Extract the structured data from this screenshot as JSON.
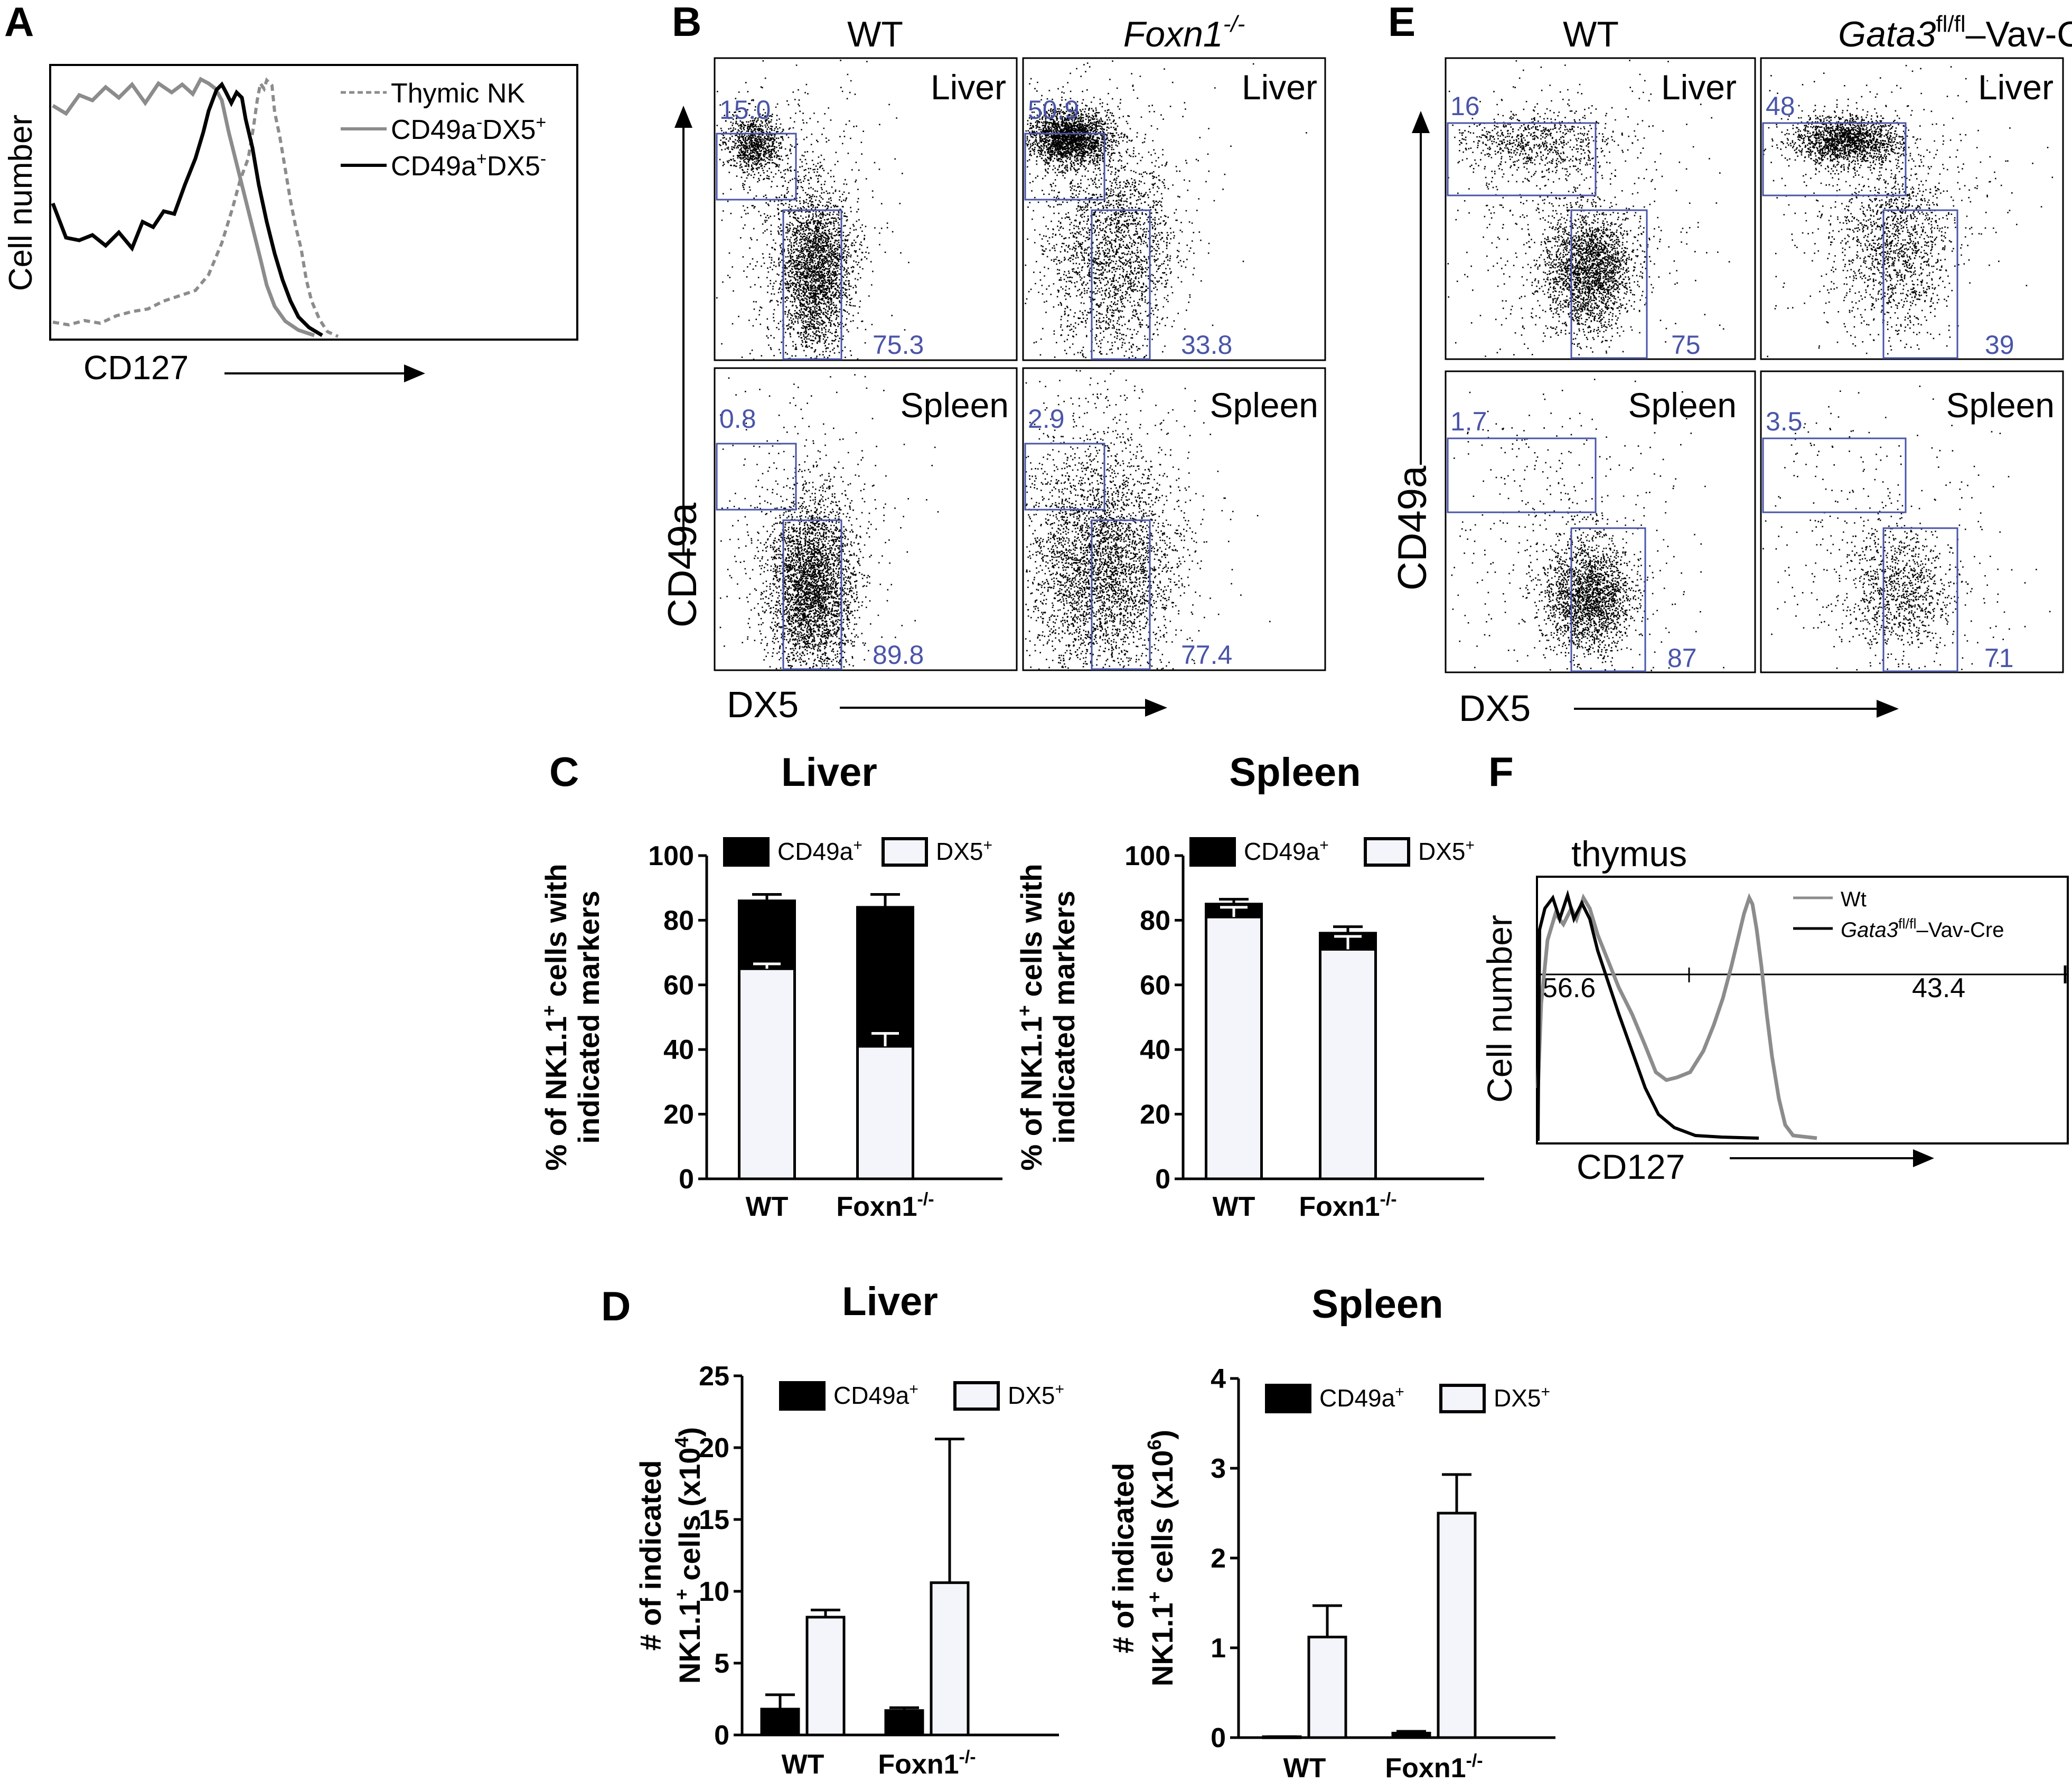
{
  "panel_labels": {
    "a": "A",
    "b": "B",
    "c": "C",
    "d": "D",
    "e": "E",
    "f": "F"
  },
  "colors": {
    "gate": "#4a55a8",
    "black": "#000000",
    "gray": "#8c8c8c",
    "bar_white": "#f4f5fb"
  },
  "panelA": {
    "ylabel": "Cell number",
    "xlabel": "CD127",
    "legend": [
      {
        "base": "Thymic NK",
        "sup1": "",
        "mid": "",
        "sup2": "",
        "style": "dotted"
      },
      {
        "base": "CD49a",
        "sup1": "-",
        "mid": "DX5",
        "sup2": "+",
        "style": "gray"
      },
      {
        "base": "CD49a",
        "sup1": "+",
        "mid": "DX5",
        "sup2": "-",
        "style": "black"
      }
    ]
  },
  "panelB": {
    "col_titles": [
      "WT",
      "Foxn1"
    ],
    "col_title_sup": "-/-",
    "ylabel": "CD49a",
    "xlabel": "DX5",
    "plots": [
      {
        "tissue": "Liver",
        "upper": "15.0",
        "lower": "75.3"
      },
      {
        "tissue": "Liver",
        "upper": "50.9",
        "lower": "33.8"
      },
      {
        "tissue": "Spleen",
        "upper": "0.8",
        "lower": "89.8"
      },
      {
        "tissue": "Spleen",
        "upper": "2.9",
        "lower": "77.4"
      }
    ]
  },
  "panelE": {
    "col_titles": [
      "WT",
      "Gata3",
      "–Vav-Cre"
    ],
    "col_title_sup": "fl/fl",
    "ylabel": "CD49a",
    "xlabel": "DX5",
    "plots": [
      {
        "tissue": "Liver",
        "upper": "16",
        "lower": "75"
      },
      {
        "tissue": "Liver",
        "upper": "48",
        "lower": "39"
      },
      {
        "tissue": "Spleen",
        "upper": "1.7",
        "lower": "87"
      },
      {
        "tissue": "Spleen",
        "upper": "3.5",
        "lower": "71"
      }
    ]
  },
  "panelF": {
    "title": "thymus",
    "ylabel": "Cell number",
    "xlabel": "CD127",
    "gate_left": "56.6",
    "gate_right": "43.4",
    "legend": [
      "Wt",
      "Gata3",
      "–Vav-Cre"
    ],
    "legend_sup": "fl/fl"
  },
  "chart_data": [
    {
      "id": "C-liver",
      "type": "bar",
      "stacked": true,
      "title": "Liver",
      "ylabel_line1": "% of NK1.1",
      "ylabel_sup": "+",
      "ylabel_line1b": " cells with",
      "ylabel_line2": "indicated markers",
      "categories": [
        "WT",
        "Foxn1"
      ],
      "category_sup": [
        "",
        "-/-"
      ],
      "ylim": [
        0,
        100
      ],
      "yticks": [
        "0",
        "20",
        "40",
        "60",
        "80",
        "100"
      ],
      "legend": [
        {
          "base": "CD49a",
          "sup": "+"
        },
        {
          "base": "DX5",
          "sup": "+"
        }
      ],
      "series": [
        {
          "name": "DX5+",
          "values": [
            65,
            41
          ],
          "errors": [
            1.5,
            4
          ]
        },
        {
          "name": "CD49a+",
          "values": [
            21,
            43
          ],
          "errors": [
            2,
            4
          ]
        }
      ]
    },
    {
      "id": "C-spleen",
      "type": "bar",
      "stacked": true,
      "title": "Spleen",
      "ylabel_line1": "% of NK1.1",
      "ylabel_sup": "+",
      "ylabel_line1b": " cells with",
      "ylabel_line2": "indicated markers",
      "categories": [
        "WT",
        "Foxn1"
      ],
      "category_sup": [
        "",
        "-/-"
      ],
      "ylim": [
        0,
        100
      ],
      "yticks": [
        "0",
        "20",
        "40",
        "60",
        "80",
        "100"
      ],
      "legend": [
        {
          "base": "CD49a",
          "sup": "+"
        },
        {
          "base": "DX5",
          "sup": "+"
        }
      ],
      "series": [
        {
          "name": "DX5+",
          "values": [
            81,
            71
          ],
          "errors": [
            3,
            4
          ]
        },
        {
          "name": "CD49a+",
          "values": [
            4,
            5
          ],
          "errors": [
            1.5,
            2
          ]
        }
      ]
    },
    {
      "id": "D-liver",
      "type": "bar",
      "stacked": false,
      "title": "Liver",
      "ylabel_line1": "# of indicated",
      "ylabel_line2a": "NK1.1",
      "ylabel_sup": "+",
      "ylabel_line2b": " cells (x10",
      "ylabel_exp": "4",
      "ylabel_close": ")",
      "categories": [
        "WT",
        "Foxn1"
      ],
      "category_sup": [
        "",
        "-/-"
      ],
      "ylim": [
        0,
        25
      ],
      "yticks": [
        "0",
        "5",
        "10",
        "15",
        "20",
        "25"
      ],
      "legend": [
        {
          "base": "CD49a",
          "sup": "+"
        },
        {
          "base": "DX5",
          "sup": "+"
        }
      ],
      "series": [
        {
          "name": "CD49a+",
          "values": [
            1.8,
            1.7
          ],
          "errors": [
            1.0,
            0.2
          ]
        },
        {
          "name": "DX5+",
          "values": [
            8.2,
            10.6
          ],
          "errors": [
            0.5,
            10.0
          ]
        }
      ]
    },
    {
      "id": "D-spleen",
      "type": "bar",
      "stacked": false,
      "title": "Spleen",
      "ylabel_line1": "# of indicated",
      "ylabel_line2a": "NK1.1",
      "ylabel_sup": "+",
      "ylabel_line2b": " cells (x10",
      "ylabel_exp": "6",
      "ylabel_close": ")",
      "categories": [
        "WT",
        "Foxn1"
      ],
      "category_sup": [
        "",
        "-/-"
      ],
      "ylim": [
        0,
        4
      ],
      "yticks": [
        "0",
        "1",
        "2",
        "3",
        "4"
      ],
      "legend": [
        {
          "base": "CD49a",
          "sup": "+"
        },
        {
          "base": "DX5",
          "sup": "+"
        }
      ],
      "series": [
        {
          "name": "CD49a+",
          "values": [
            0.01,
            0.05
          ],
          "errors": [
            0.0,
            0.02
          ]
        },
        {
          "name": "DX5+",
          "values": [
            1.12,
            2.5
          ],
          "errors": [
            0.35,
            0.43
          ]
        }
      ]
    }
  ]
}
